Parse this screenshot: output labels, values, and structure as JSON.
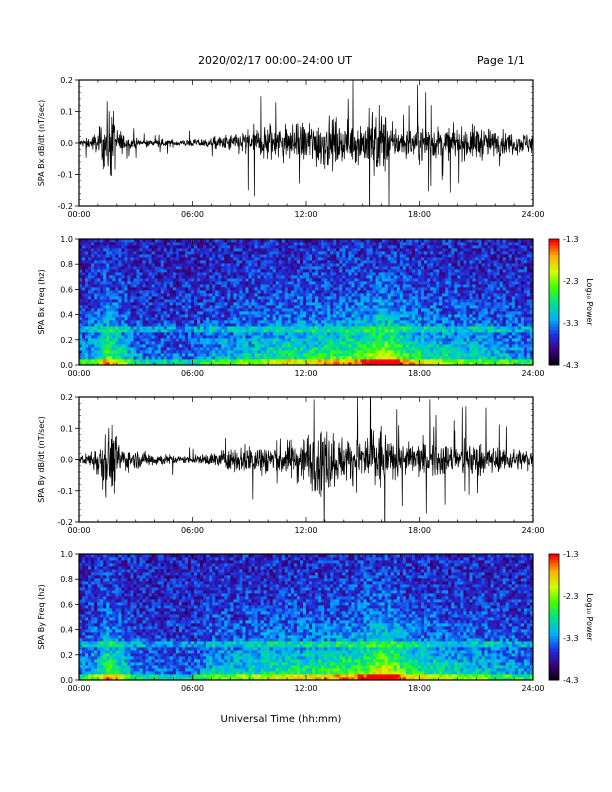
{
  "header": {
    "title": "2020/02/17  00:00–24:00 UT",
    "page": "Page 1/1"
  },
  "xlabel": "Universal Time (hh:mm)",
  "x_ticks": [
    "00:00",
    "06:00",
    "12:00",
    "18:00",
    "24:00"
  ],
  "colorbar": {
    "label": "Log₁₀ Power",
    "ticks": [
      "-1.3",
      "-2.3",
      "-3.3",
      "-4.3"
    ],
    "range": [
      -4.3,
      -1.3
    ],
    "colormap": [
      "#000000",
      "#3a0078",
      "#2030e0",
      "#00b0ff",
      "#00e090",
      "#40ff00",
      "#d0ff00",
      "#ffb000",
      "#ff0000"
    ]
  },
  "chart_data": [
    {
      "type": "line",
      "title": "",
      "ylabel": "SPA Bx dB/dt (nT/sec)",
      "xlabel": "",
      "xlim": [
        "00:00",
        "24:00"
      ],
      "ylim": [
        -0.2,
        0.2
      ],
      "y_ticks": [
        "0.2",
        "0.1",
        "0.0",
        "-0.1",
        "-0.2"
      ],
      "color": "#000000",
      "envelope": {
        "x_hours": [
          0,
          0.5,
          1.0,
          1.5,
          1.8,
          2.0,
          2.5,
          3.0,
          4.0,
          5.0,
          6.0,
          7.0,
          8.0,
          9.0,
          10.0,
          11.0,
          12.0,
          13.0,
          14.0,
          15.0,
          15.5,
          16.0,
          16.5,
          17.0,
          18.0,
          19.0,
          20.0,
          21.0,
          22.0,
          23.0,
          24.0
        ],
        "amplitude": [
          0.02,
          0.03,
          0.06,
          0.2,
          0.2,
          0.1,
          0.03,
          0.025,
          0.02,
          0.02,
          0.02,
          0.03,
          0.05,
          0.08,
          0.12,
          0.1,
          0.12,
          0.15,
          0.1,
          0.12,
          0.2,
          0.2,
          0.1,
          0.08,
          0.1,
          0.09,
          0.08,
          0.1,
          0.07,
          0.06,
          0.06
        ]
      }
    },
    {
      "type": "heatmap",
      "title": "",
      "ylabel": "SPA Bx Freq (hz)",
      "xlim": [
        "00:00",
        "24:00"
      ],
      "ylim": [
        0.0,
        1.0
      ],
      "y_ticks": [
        "1.0",
        "0.8",
        "0.6",
        "0.4",
        "0.2",
        "0.0"
      ],
      "z_label": "Log₁₀ Power",
      "z_range": [
        -4.3,
        -1.3
      ],
      "activity_hours": [
        0,
        1,
        1.5,
        2,
        3,
        4,
        6,
        7,
        9,
        11,
        12,
        13,
        14,
        15,
        16,
        16.5,
        17,
        18,
        20,
        22,
        23,
        24
      ],
      "activity_level": [
        0.2,
        0.35,
        0.6,
        0.45,
        0.2,
        0.15,
        0.15,
        0.25,
        0.35,
        0.45,
        0.45,
        0.5,
        0.55,
        0.6,
        0.8,
        0.75,
        0.6,
        0.45,
        0.35,
        0.3,
        0.25,
        0.2
      ]
    },
    {
      "type": "line",
      "title": "",
      "ylabel": "SPA By dB/dt (nT/sec)",
      "xlabel": "",
      "xlim": [
        "00:00",
        "24:00"
      ],
      "ylim": [
        -0.2,
        0.2
      ],
      "y_ticks": [
        "0.2",
        "0.1",
        "0.0",
        "-0.1",
        "-0.2"
      ],
      "color": "#000000",
      "envelope": {
        "x_hours": [
          0,
          0.5,
          1.0,
          1.5,
          1.8,
          2.0,
          2.5,
          3.0,
          4.0,
          5.0,
          6.0,
          7.0,
          8.0,
          9.0,
          10.0,
          11.0,
          12.0,
          13.0,
          14.0,
          15.0,
          15.5,
          16.0,
          16.5,
          17.0,
          18.0,
          19.0,
          20.0,
          21.0,
          22.0,
          23.0,
          24.0
        ],
        "amplitude": [
          0.02,
          0.04,
          0.1,
          0.2,
          0.2,
          0.12,
          0.06,
          0.05,
          0.04,
          0.025,
          0.02,
          0.04,
          0.06,
          0.09,
          0.1,
          0.1,
          0.15,
          0.2,
          0.12,
          0.14,
          0.2,
          0.2,
          0.1,
          0.09,
          0.1,
          0.1,
          0.08,
          0.1,
          0.07,
          0.06,
          0.06
        ]
      }
    },
    {
      "type": "heatmap",
      "title": "",
      "ylabel": "SPA By Freq (hz)",
      "xlim": [
        "00:00",
        "24:00"
      ],
      "ylim": [
        0.0,
        1.0
      ],
      "y_ticks": [
        "1.0",
        "0.8",
        "0.6",
        "0.4",
        "0.2",
        "0.0"
      ],
      "z_label": "Log₁₀ Power",
      "z_range": [
        -4.3,
        -1.3
      ],
      "activity_hours": [
        0,
        1,
        1.5,
        2,
        3,
        4,
        6,
        7,
        9,
        11,
        12,
        13,
        14,
        15,
        16,
        16.5,
        17,
        18,
        20,
        22,
        23,
        24
      ],
      "activity_level": [
        0.2,
        0.35,
        0.6,
        0.45,
        0.2,
        0.15,
        0.15,
        0.3,
        0.35,
        0.45,
        0.45,
        0.5,
        0.55,
        0.6,
        0.85,
        0.8,
        0.6,
        0.45,
        0.35,
        0.3,
        0.25,
        0.2
      ]
    }
  ]
}
